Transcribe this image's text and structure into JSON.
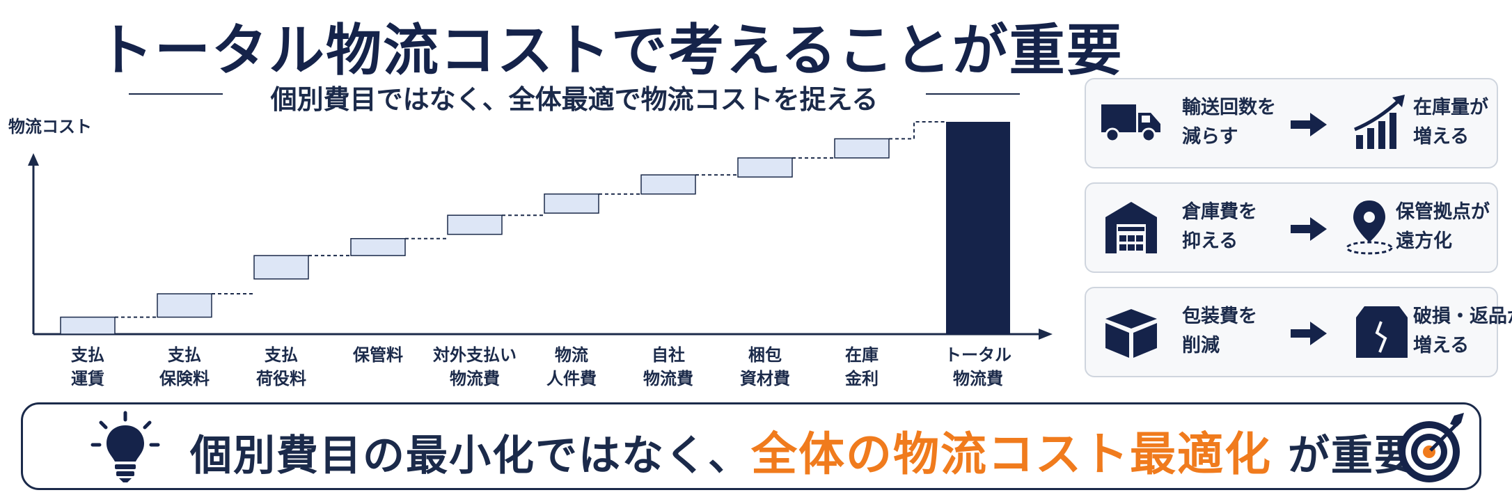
{
  "header": {
    "title": "トータル物流コストで考えることが重要",
    "subtitle": "個別費目ではなく、全体最適で物流コストを捉える"
  },
  "chart_data": {
    "type": "bar",
    "ylabel": "物流コスト",
    "categories": [
      [
        "支払",
        "運賃"
      ],
      [
        "支払",
        "保険料"
      ],
      [
        "支払",
        "荷役料"
      ],
      [
        "保管料"
      ],
      [
        "対外支払い",
        "物流費"
      ],
      [
        "物流",
        "人件費"
      ],
      [
        "自社",
        "物流費"
      ],
      [
        "梱包",
        "資材費"
      ],
      [
        "在庫",
        "金利"
      ],
      [
        "トータル",
        "物流費"
      ]
    ],
    "steps": [
      {
        "low": 0.0,
        "high": 0.08
      },
      {
        "low": 0.08,
        "high": 0.19
      },
      {
        "low": 0.26,
        "high": 0.37
      },
      {
        "low": 0.37,
        "high": 0.45
      },
      {
        "low": 0.47,
        "high": 0.56
      },
      {
        "low": 0.57,
        "high": 0.66
      },
      {
        "low": 0.66,
        "high": 0.75
      },
      {
        "low": 0.74,
        "high": 0.83
      },
      {
        "low": 0.83,
        "high": 0.92
      }
    ],
    "total": 1.0,
    "grid": false,
    "colors": {
      "step": "#dde6f6",
      "step_border": "#1b2a4a",
      "total": "#15234a"
    }
  },
  "panels": [
    {
      "left": [
        "輸送回数を",
        "減らす"
      ],
      "right": [
        "在庫量が",
        "増える"
      ],
      "left_icon": "truck-icon",
      "right_icon": "growth-chart-icon"
    },
    {
      "left": [
        "倉庫費を",
        "抑える"
      ],
      "right": [
        "保管拠点が",
        "遠方化"
      ],
      "left_icon": "warehouse-icon",
      "right_icon": "location-pin-icon"
    },
    {
      "left": [
        "包装費を",
        "削減"
      ],
      "right": [
        "破損・返品が",
        "増える"
      ],
      "left_icon": "box-icon",
      "right_icon": "damaged-box-icon"
    }
  ],
  "bottom": {
    "text_before": "個別費目の最小化ではなく、",
    "highlight": "全体の物流コスト最適化",
    "text_after": " が重要",
    "highlight_color": "#f07b1d",
    "left_icon": "lightbulb-icon",
    "right_icon": "target-icon"
  }
}
